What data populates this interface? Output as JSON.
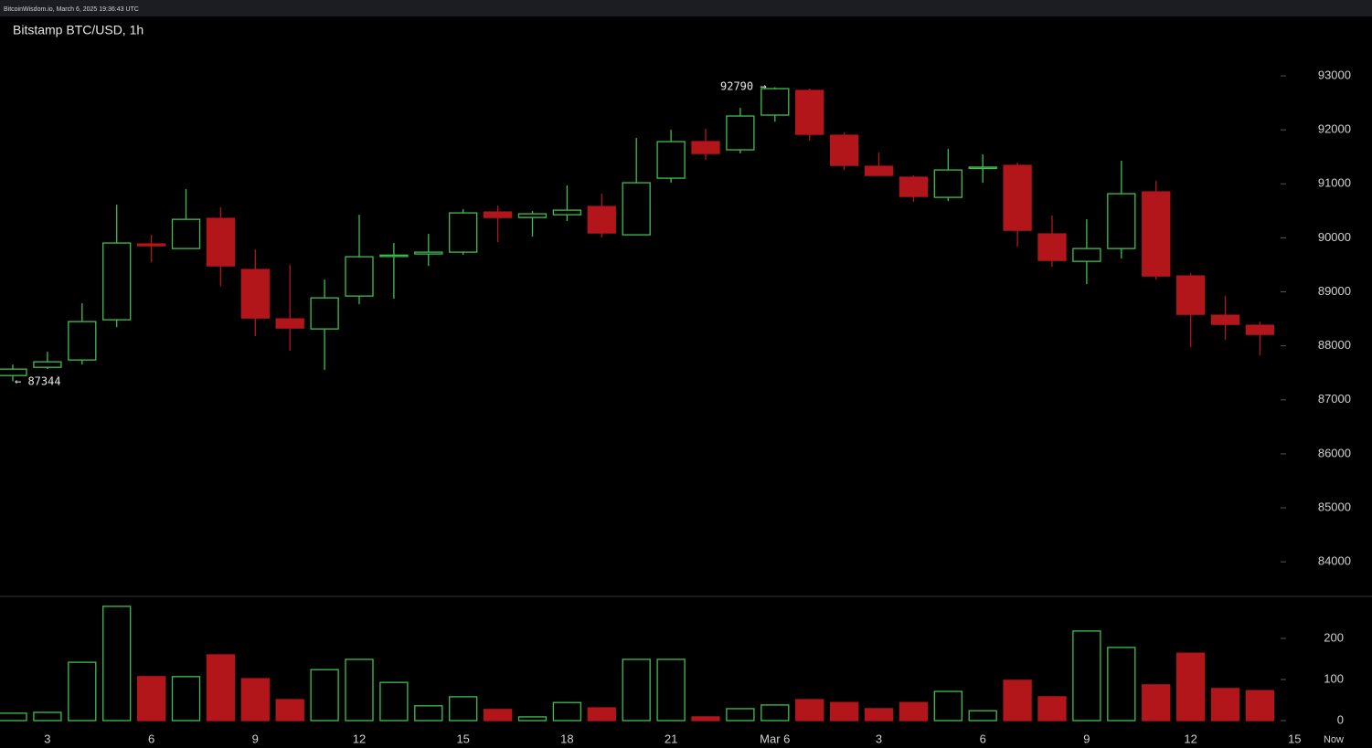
{
  "chart_data": {
    "type": "candlestick",
    "header": "BitcoinWisdom.io, March 6, 2025 19:36:43 UTC",
    "title": "Bitstamp BTC/USD, 1h",
    "annotations": [
      "92790 →",
      "← 87344"
    ],
    "up_color": "#3fbf4f",
    "down_color": "#b3161a",
    "open": [
      87450,
      87602,
      87738,
      88483,
      89887,
      89802,
      90360,
      89413,
      88499,
      88313,
      88922,
      89660,
      89701,
      89735,
      90479,
      90377,
      90428,
      90580,
      90056,
      91105,
      91782,
      91630,
      92273,
      92729,
      91900,
      91325,
      91122,
      90750,
      91290,
      91342,
      90073,
      89565,
      89802,
      90851,
      89294,
      88567,
      88381
    ],
    "high": [
      87653,
      87890,
      88787,
      90614,
      90056,
      90902,
      90564,
      89785,
      89498,
      89227,
      90428,
      89904,
      90073,
      90530,
      90597,
      90496,
      90970,
      90817,
      91850,
      92000,
      92020,
      92408,
      92790,
      92763,
      91951,
      91579,
      91156,
      91646,
      91545,
      91393,
      90411,
      90344,
      91427,
      91055,
      89345,
      88922,
      88449
    ],
    "low": [
      87344,
      87569,
      87653,
      88347,
      89548,
      89800,
      89108,
      88178,
      87907,
      87552,
      88770,
      88872,
      89481,
      89684,
      89921,
      90022,
      90310,
      90005,
      90056,
      91020,
      91443,
      91562,
      92150,
      91800,
      91257,
      91156,
      90665,
      90682,
      91020,
      89836,
      89464,
      89142,
      89616,
      89227,
      87975,
      88110,
      87822
    ],
    "close": [
      87569,
      87704,
      88449,
      89904,
      89853,
      90343,
      89481,
      88516,
      88330,
      88888,
      89650,
      89680,
      89735,
      90462,
      90377,
      90445,
      90513,
      90090,
      91020,
      91782,
      91562,
      92256,
      92763,
      91917,
      91342,
      91156,
      90767,
      91257,
      91310,
      90140,
      89582,
      89802,
      90817,
      89294,
      88584,
      88398,
      88212
    ],
    "volume": [
      18,
      20,
      142,
      278,
      107,
      107,
      160,
      102,
      51,
      124,
      149,
      93,
      36,
      58,
      27,
      9,
      44,
      31,
      149,
      149,
      9,
      29,
      38,
      51,
      44,
      29,
      44,
      71,
      24,
      98,
      58,
      218,
      178,
      87,
      164,
      78,
      73
    ],
    "ylim": [
      83360,
      94100
    ],
    "yticks": [
      84000,
      85000,
      86000,
      87000,
      88000,
      89000,
      90000,
      91000,
      92000,
      93000
    ],
    "volume_ylim": [
      0,
      300
    ],
    "volume_yticks": [
      0,
      100,
      200
    ],
    "xticks": [
      "3",
      "6",
      "9",
      "12",
      "15",
      "18",
      "21",
      "Mar 6",
      "3",
      "6",
      "9",
      "12",
      "15",
      "Now"
    ]
  }
}
